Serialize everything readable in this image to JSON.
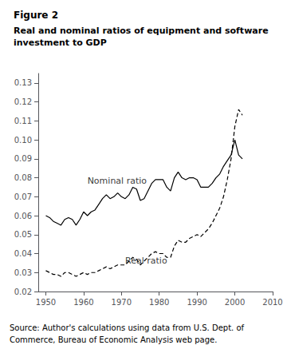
{
  "chart_data": {
    "type": "line",
    "title": "Figure 2",
    "subtitle": "Real and nominal ratios of equipment and software\ninvestment to GDP",
    "source": "Source: Author's calculations using data from U.S. Dept. of\nCommerce, Bureau of Economic Analysis web page.",
    "x": [
      1950,
      1951,
      1952,
      1953,
      1954,
      1955,
      1956,
      1957,
      1958,
      1959,
      1960,
      1961,
      1962,
      1963,
      1964,
      1965,
      1966,
      1967,
      1968,
      1969,
      1970,
      1971,
      1972,
      1973,
      1974,
      1975,
      1976,
      1977,
      1978,
      1979,
      1980,
      1981,
      1982,
      1983,
      1984,
      1985,
      1986,
      1987,
      1988,
      1989,
      1990,
      1991,
      1992,
      1993,
      1994,
      1995,
      1996,
      1997,
      1998,
      1999,
      2000,
      2001,
      2002
    ],
    "series": [
      {
        "color": "#000000",
        "line_style": "solid",
        "values": [
          0.06,
          0.059,
          0.057,
          0.056,
          0.055,
          0.058,
          0.059,
          0.058,
          0.055,
          0.058,
          0.062,
          0.06,
          0.062,
          0.063,
          0.066,
          0.069,
          0.071,
          0.069,
          0.07,
          0.072,
          0.07,
          0.069,
          0.071,
          0.075,
          0.074,
          0.068,
          0.069,
          0.073,
          0.077,
          0.079,
          0.079,
          0.079,
          0.075,
          0.073,
          0.08,
          0.083,
          0.08,
          0.079,
          0.08,
          0.08,
          0.079,
          0.075,
          0.075,
          0.075,
          0.077,
          0.08,
          0.082,
          0.086,
          0.089,
          0.092,
          0.1,
          0.092,
          0.09
        ]
      },
      {
        "color": "#000000",
        "line_style": "dashed",
        "values": [
          0.031,
          0.03,
          0.029,
          0.029,
          0.028,
          0.03,
          0.03,
          0.029,
          0.028,
          0.029,
          0.03,
          0.029,
          0.03,
          0.03,
          0.031,
          0.032,
          0.033,
          0.032,
          0.033,
          0.034,
          0.034,
          0.034,
          0.036,
          0.038,
          0.037,
          0.034,
          0.036,
          0.038,
          0.04,
          0.041,
          0.04,
          0.04,
          0.038,
          0.038,
          0.044,
          0.047,
          0.046,
          0.046,
          0.048,
          0.049,
          0.05,
          0.049,
          0.051,
          0.053,
          0.056,
          0.06,
          0.064,
          0.07,
          0.079,
          0.09,
          0.107,
          0.116,
          0.113
        ]
      }
    ],
    "annotations": [
      {
        "text": "Nominal ratio",
        "x": 1961,
        "y": 0.076
      },
      {
        "text": "Real ratio",
        "x": 1971,
        "y": 0.034
      }
    ],
    "xlim": [
      1948,
      2010
    ],
    "ylim": [
      0.02,
      0.135
    ],
    "xticks": [
      1950,
      1960,
      1970,
      1980,
      1990,
      2000,
      2010
    ],
    "yticks": [
      0.02,
      0.03,
      0.04,
      0.05,
      0.06,
      0.07,
      0.08,
      0.09,
      {
        "value": 0.1,
        "label": "0.10"
      },
      0.11,
      0.12,
      0.13
    ],
    "grid": false
  }
}
